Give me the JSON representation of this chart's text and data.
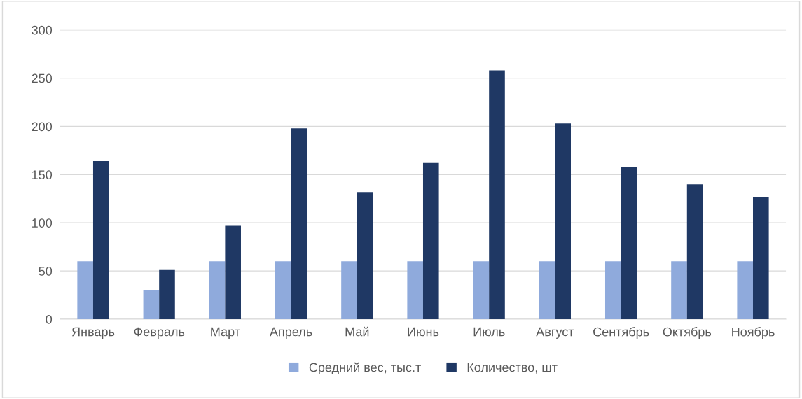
{
  "chart_data": {
    "type": "bar",
    "categories": [
      "Январь",
      "Февраль",
      "Март",
      "Апрель",
      "Май",
      "Июнь",
      "Июль",
      "Август",
      "Сентябрь",
      "Октябрь",
      "Ноябрь"
    ],
    "series": [
      {
        "name": "Средний вес, тыс.т",
        "color": "#8faadc",
        "values": [
          60,
          30,
          60,
          60,
          60,
          60,
          60,
          60,
          60,
          60,
          60
        ]
      },
      {
        "name": "Количество, шт",
        "color": "#1f3864",
        "values": [
          164,
          51,
          97,
          198,
          132,
          162,
          258,
          203,
          158,
          140,
          127
        ]
      }
    ],
    "ylim": [
      0,
      300
    ],
    "yticks": [
      0,
      50,
      100,
      150,
      200,
      250,
      300
    ],
    "grid": "y",
    "legend": "bottom"
  }
}
